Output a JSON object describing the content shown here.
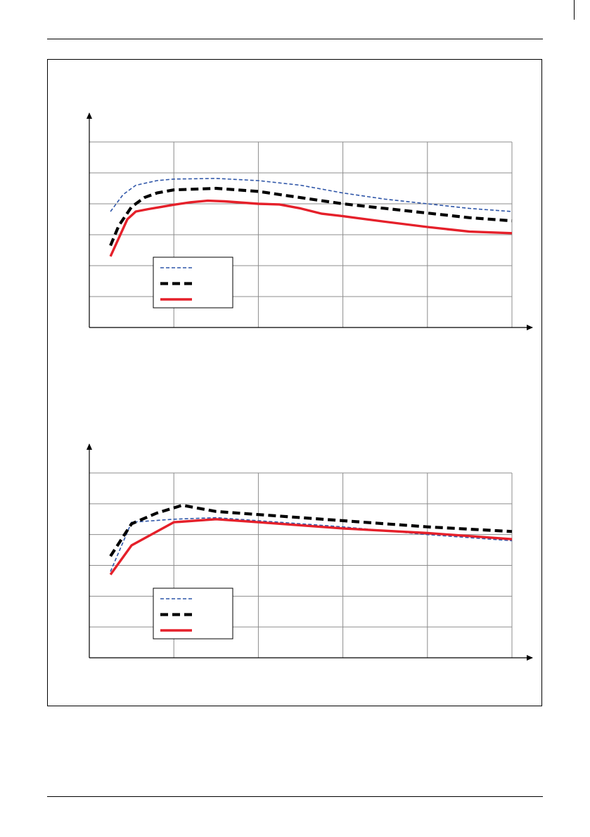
{
  "colors": {
    "series_1": "#2f56a8",
    "series_2": "#000000",
    "series_3": "#e5202a",
    "grid": "#8c8c8c",
    "axis": "#000000"
  },
  "chart_data": [
    {
      "type": "line",
      "title": "",
      "xlabel": "",
      "ylabel": "",
      "xlim": [
        0,
        5
      ],
      "ylim": [
        0,
        6
      ],
      "grid": true,
      "legend": "lower-left",
      "x_ticks": [
        0,
        1,
        2,
        3,
        4,
        5
      ],
      "y_ticks": [
        0,
        1,
        2,
        3,
        4,
        5,
        6
      ],
      "series": [
        {
          "name": "",
          "style": "dashed-thin",
          "x": [
            0.25,
            0.4,
            0.55,
            0.8,
            1.0,
            1.5,
            2.0,
            2.5,
            3.0,
            3.5,
            4.0,
            4.5,
            5.0
          ],
          "y": [
            3.75,
            4.3,
            4.6,
            4.75,
            4.8,
            4.82,
            4.75,
            4.6,
            4.35,
            4.15,
            4.0,
            3.85,
            3.75
          ]
        },
        {
          "name": "",
          "style": "dashed-thick",
          "x": [
            0.25,
            0.35,
            0.5,
            0.65,
            0.8,
            1.0,
            1.5,
            2.0,
            2.5,
            3.0,
            3.5,
            4.0,
            4.5,
            5.0
          ],
          "y": [
            2.65,
            3.3,
            3.9,
            4.2,
            4.35,
            4.45,
            4.5,
            4.4,
            4.2,
            4.0,
            3.85,
            3.7,
            3.55,
            3.45
          ]
        },
        {
          "name": "",
          "style": "solid",
          "x": [
            0.25,
            0.35,
            0.45,
            0.55,
            0.7,
            0.85,
            1.0,
            1.2,
            1.4,
            1.6,
            2.0,
            2.25,
            2.5,
            2.75,
            3.0,
            3.5,
            4.0,
            4.5,
            5.0
          ],
          "y": [
            2.3,
            2.9,
            3.5,
            3.75,
            3.83,
            3.9,
            3.97,
            4.05,
            4.1,
            4.08,
            4.0,
            3.98,
            3.85,
            3.68,
            3.6,
            3.42,
            3.25,
            3.1,
            3.05
          ]
        }
      ]
    },
    {
      "type": "line",
      "title": "",
      "xlabel": "",
      "ylabel": "",
      "xlim": [
        0,
        5
      ],
      "ylim": [
        0,
        6
      ],
      "grid": true,
      "legend": "lower-left",
      "x_ticks": [
        0,
        1,
        2,
        3,
        4,
        5
      ],
      "y_ticks": [
        0,
        1,
        2,
        3,
        4,
        5,
        6
      ],
      "series": [
        {
          "name": "",
          "style": "dashed-thin",
          "x": [
            0.25,
            0.5,
            1.0,
            1.5,
            2.0,
            3.0,
            4.0,
            5.0
          ],
          "y": [
            2.8,
            4.4,
            4.5,
            4.55,
            4.45,
            4.25,
            4.0,
            3.8
          ]
        },
        {
          "name": "",
          "style": "dashed-thick",
          "x": [
            0.25,
            0.5,
            0.8,
            1.1,
            1.5,
            2.0,
            3.0,
            4.0,
            5.0
          ],
          "y": [
            3.3,
            4.35,
            4.7,
            4.95,
            4.75,
            4.65,
            4.45,
            4.25,
            4.1
          ]
        },
        {
          "name": "",
          "style": "solid",
          "x": [
            0.25,
            0.5,
            1.0,
            1.5,
            2.0,
            3.0,
            4.0,
            5.0
          ],
          "y": [
            2.7,
            3.65,
            4.4,
            4.5,
            4.4,
            4.2,
            4.05,
            3.85
          ]
        }
      ]
    }
  ]
}
